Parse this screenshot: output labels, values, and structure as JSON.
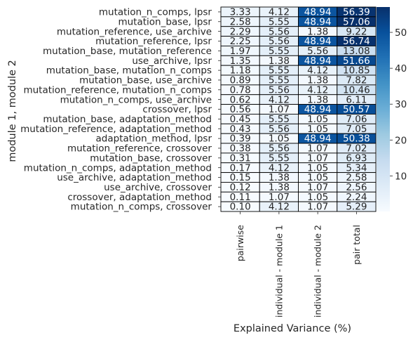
{
  "chart_data": {
    "type": "heatmap",
    "title": "",
    "xlabel": "Explained Variance (%)",
    "ylabel": "module 1, module 2",
    "columns": [
      "pairwise",
      "individual - module 1",
      "individual - module 2",
      "pair total"
    ],
    "rows": [
      "mutation_n_comps, lpsr",
      "mutation_base, lpsr",
      "mutation_reference, use_archive",
      "mutation_reference, lpsr",
      "mutation_base, mutation_reference",
      "use_archive, lpsr",
      "mutation_base, mutation_n_comps",
      "mutation_base, use_archive",
      "mutation_reference, mutation_n_comps",
      "mutation_n_comps, use_archive",
      "crossover, lpsr",
      "mutation_base, adaptation_method",
      "mutation_reference, adaptation_method",
      "adaptation_method, lpsr",
      "mutation_reference, crossover",
      "mutation_base, crossover",
      "mutation_n_comps, adaptation_method",
      "use_archive, adaptation_method",
      "use_archive, crossover",
      "crossover, adaptation_method",
      "mutation_n_comps, crossover"
    ],
    "values": [
      [
        3.33,
        4.12,
        48.94,
        56.39
      ],
      [
        2.58,
        5.55,
        48.94,
        57.06
      ],
      [
        2.29,
        5.56,
        1.38,
        9.22
      ],
      [
        2.25,
        5.56,
        48.94,
        56.74
      ],
      [
        1.97,
        5.55,
        5.56,
        13.08
      ],
      [
        1.35,
        1.38,
        48.94,
        51.66
      ],
      [
        1.18,
        5.55,
        4.12,
        10.85
      ],
      [
        0.89,
        5.55,
        1.38,
        7.82
      ],
      [
        0.78,
        5.56,
        4.12,
        10.46
      ],
      [
        0.62,
        4.12,
        1.38,
        6.11
      ],
      [
        0.56,
        1.07,
        48.94,
        50.57
      ],
      [
        0.45,
        5.55,
        1.05,
        7.06
      ],
      [
        0.43,
        5.56,
        1.05,
        7.05
      ],
      [
        0.39,
        1.05,
        48.94,
        50.38
      ],
      [
        0.38,
        5.56,
        1.07,
        7.02
      ],
      [
        0.31,
        5.55,
        1.07,
        6.93
      ],
      [
        0.17,
        4.12,
        1.05,
        5.34
      ],
      [
        0.15,
        1.38,
        1.05,
        2.58
      ],
      [
        0.12,
        1.38,
        1.07,
        2.56
      ],
      [
        0.11,
        1.07,
        1.05,
        2.24
      ],
      [
        0.1,
        4.12,
        1.07,
        5.29
      ]
    ],
    "value_format": "2 decimals",
    "colorbar": {
      "ticks": [
        "10",
        "20",
        "30",
        "40",
        "50"
      ],
      "range": [
        0.1,
        57.06
      ],
      "colormap": "Blues"
    }
  }
}
